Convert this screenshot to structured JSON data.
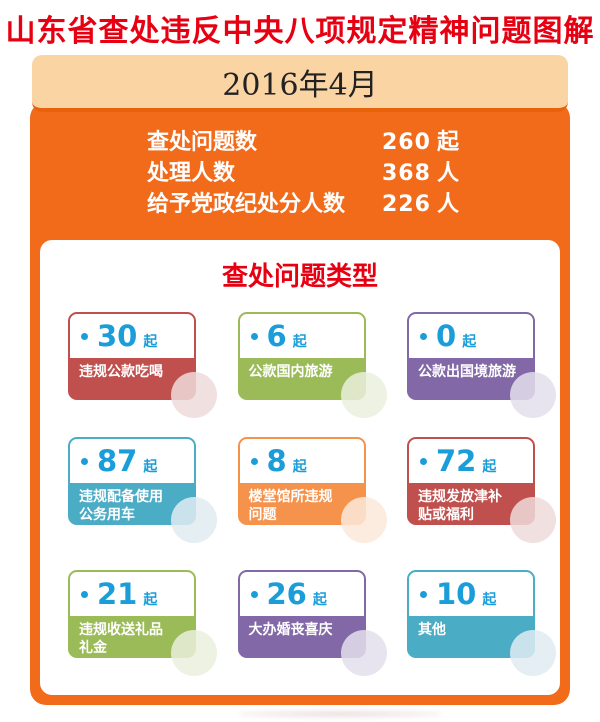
{
  "page": {
    "title": "山东省查处违反中央八项规定精神问题图解",
    "period": "2016年4月"
  },
  "summary": {
    "rows": [
      {
        "label": "查处问题数",
        "value": "260",
        "unit": "起"
      },
      {
        "label": "处理人数",
        "value": "368",
        "unit": "人"
      },
      {
        "label": "给予党政纪处分人数",
        "value": "226",
        "unit": "人"
      }
    ]
  },
  "categories": {
    "title": "查处问题类型",
    "cards": [
      {
        "count": "30",
        "unit": "起",
        "label": "违规公款吃喝",
        "color": "#C0504D",
        "tint": "rgba(238,219,219,0.85)"
      },
      {
        "count": "6",
        "unit": "起",
        "label": "公款国内旅游",
        "color": "#9BBB59",
        "tint": "rgba(234,240,221,0.85)"
      },
      {
        "count": "0",
        "unit": "起",
        "label": "公款出国境旅游",
        "color": "#8268A6",
        "tint": "rgba(228,223,236,0.85)"
      },
      {
        "count": "87",
        "unit": "起",
        "label": "违规配备使用\n公务用车",
        "color": "#4BACC6",
        "tint": "rgba(223,235,241,0.85)"
      },
      {
        "count": "8",
        "unit": "起",
        "label": "楼堂馆所违规\n问题",
        "color": "#F5924B",
        "tint": "rgba(251,233,218,0.85)"
      },
      {
        "count": "72",
        "unit": "起",
        "label": "违规发放津补\n贴或福利",
        "color": "#C0504D",
        "tint": "rgba(238,219,219,0.85)"
      },
      {
        "count": "21",
        "unit": "起",
        "label": "违规收送礼品\n礼金",
        "color": "#9BBB59",
        "tint": "rgba(234,240,221,0.85)"
      },
      {
        "count": "26",
        "unit": "起",
        "label": "大办婚丧喜庆",
        "color": "#8268A6",
        "tint": "rgba(228,223,236,0.85)"
      },
      {
        "count": "10",
        "unit": "起",
        "label": "其他",
        "color": "#4BACC6",
        "tint": "rgba(223,235,241,0.85)"
      }
    ]
  },
  "colors": {
    "title_red": "#E60012",
    "panel_orange": "#F26B1B",
    "period_peach": "#FBD4A4",
    "period_border": "#E8610B",
    "number_blue": "#1B9DD9",
    "card_red": "#C0504D",
    "card_green": "#9BBB59",
    "card_purple": "#8268A6",
    "card_blue": "#4BACC6",
    "card_orange": "#F5924B"
  },
  "chart_data": {
    "type": "table",
    "title": "山东省查处违反中央八项规定精神问题图解",
    "subtitle": "2016年4月",
    "summary": [
      {
        "label": "查处问题数",
        "value": 260,
        "unit": "起"
      },
      {
        "label": "处理人数",
        "value": 368,
        "unit": "人"
      },
      {
        "label": "给予党政纪处分人数",
        "value": 226,
        "unit": "人"
      }
    ],
    "categories_title": "查处问题类型",
    "categories": [
      "违规公款吃喝",
      "公款国内旅游",
      "公款出国境旅游",
      "违规配备使用公务用车",
      "楼堂馆所违规问题",
      "违规发放津补贴或福利",
      "违规收送礼品礼金",
      "大办婚丧喜庆",
      "其他"
    ],
    "values": [
      30,
      6,
      0,
      87,
      8,
      72,
      21,
      26,
      10
    ],
    "unit": "起"
  }
}
